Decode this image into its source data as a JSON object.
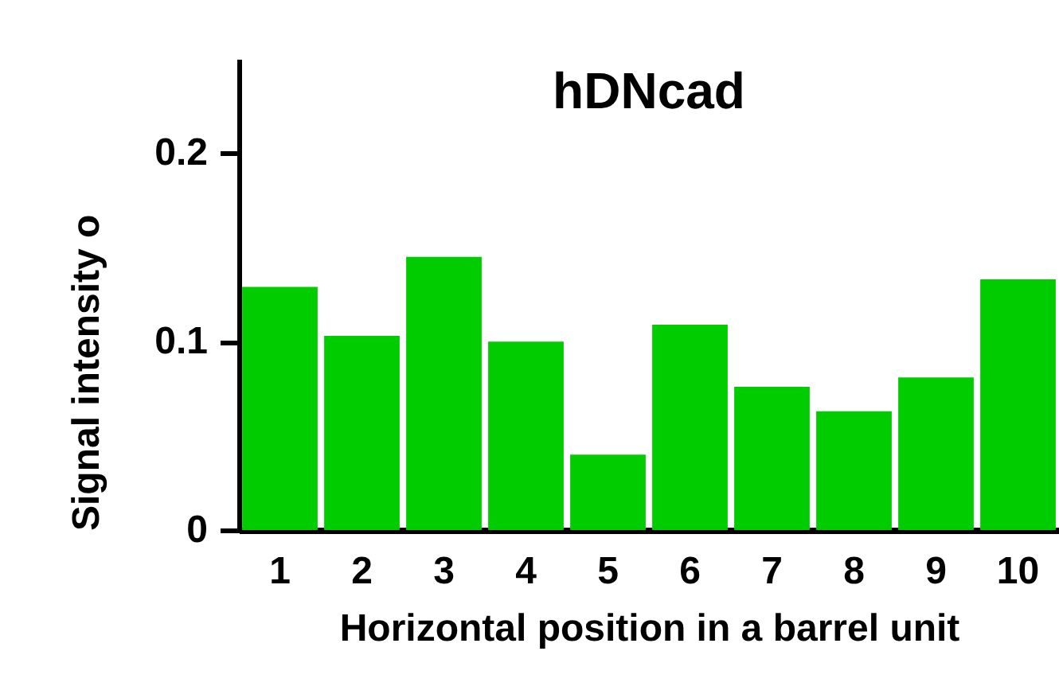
{
  "chart_data": {
    "type": "bar",
    "title": "hDNcad",
    "xlabel": "Horizontal position in a barrel unit",
    "ylabel": "Signal intensity o",
    "categories": [
      "1",
      "2",
      "3",
      "4",
      "5",
      "6",
      "7",
      "8",
      "9",
      "10"
    ],
    "values": [
      0.129,
      0.103,
      0.145,
      0.1,
      0.04,
      0.109,
      0.076,
      0.063,
      0.081,
      0.133
    ],
    "color": "#00cc00",
    "ylim": [
      0,
      0.25
    ],
    "yticks": [
      0,
      0.1,
      0.2
    ],
    "grid": false
  }
}
